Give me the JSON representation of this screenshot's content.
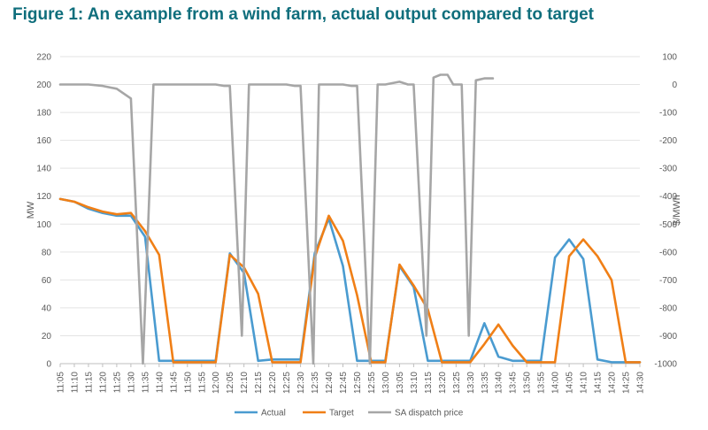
{
  "figure": {
    "title": "Figure 1: An example from a wind farm, actual output compared to target"
  },
  "chart_data": {
    "type": "line",
    "x_categories": [
      "11:05",
      "11:10",
      "11:15",
      "11:20",
      "11:25",
      "11:30",
      "11:35",
      "11:40",
      "11:45",
      "11:50",
      "11:55",
      "12:00",
      "12:05",
      "12:10",
      "12:15",
      "12:20",
      "12:25",
      "12:30",
      "12:35",
      "12:40",
      "12:45",
      "12:50",
      "12:55",
      "13:00",
      "13:05",
      "13:10",
      "13:15",
      "13:20",
      "13:25",
      "13:30",
      "13:35",
      "13:40",
      "13:45",
      "13:50",
      "13:55",
      "14:00",
      "14:05",
      "14:10",
      "14:15",
      "14:20",
      "14:25",
      "14:30"
    ],
    "left_axis": {
      "label": "MW",
      "min": 0,
      "max": 220,
      "step": 20,
      "ticks": [
        "0",
        "20",
        "40",
        "60",
        "80",
        "100",
        "120",
        "140",
        "160",
        "180",
        "200",
        "220"
      ]
    },
    "right_axis": {
      "label": "$/MWh",
      "min": -1000,
      "max": 100,
      "step": 100,
      "ticks": [
        "-1000",
        "-900",
        "-800",
        "-700",
        "-600",
        "-500",
        "-400",
        "-300",
        "-200",
        "-100",
        "0",
        "100"
      ]
    },
    "grid": true,
    "legend_position": "bottom",
    "series": [
      {
        "name": "Actual",
        "axis": "left",
        "color": "#4a9bd0",
        "values": [
          118,
          116,
          111,
          108,
          106,
          106,
          91,
          2,
          2,
          2,
          2,
          2,
          79,
          65,
          2,
          3,
          3,
          3,
          79,
          104,
          70,
          2,
          2,
          2,
          70,
          55,
          2,
          2,
          2,
          2,
          29,
          5,
          2,
          2,
          2,
          76,
          89,
          75,
          3,
          1,
          1,
          1
        ]
      },
      {
        "name": "Target",
        "axis": "left",
        "color": "#f07f16",
        "values": [
          118,
          116,
          112,
          109,
          107,
          108,
          95,
          78,
          1,
          1,
          1,
          1,
          78,
          69,
          50,
          1,
          1,
          1,
          76,
          106,
          88,
          49,
          1,
          1,
          71,
          56,
          39,
          1,
          1,
          1,
          14,
          28,
          13,
          1,
          1,
          1,
          77,
          89,
          77,
          60,
          1,
          1
        ]
      },
      {
        "name": "SA dispatch price",
        "axis": "right",
        "color": "#a6a6a6",
        "kind": "stepped",
        "points": [
          [
            0,
            0
          ],
          [
            1,
            0
          ],
          [
            2,
            0
          ],
          [
            3,
            -5
          ],
          [
            4,
            -15
          ],
          [
            5,
            -50
          ],
          [
            5.85,
            -1000
          ],
          [
            6.6,
            0
          ],
          [
            7,
            0
          ],
          [
            8,
            0
          ],
          [
            9,
            0
          ],
          [
            10,
            0
          ],
          [
            11,
            0
          ],
          [
            11.6,
            -5
          ],
          [
            12,
            -5
          ],
          [
            12.85,
            -900
          ],
          [
            13.35,
            0
          ],
          [
            14,
            0
          ],
          [
            15,
            0
          ],
          [
            16,
            0
          ],
          [
            16.6,
            -5
          ],
          [
            17,
            -5
          ],
          [
            17.9,
            -1000
          ],
          [
            18.3,
            0
          ],
          [
            19,
            0
          ],
          [
            20,
            0
          ],
          [
            20.6,
            -5
          ],
          [
            21,
            -5
          ],
          [
            21.9,
            -1000
          ],
          [
            22.45,
            0
          ],
          [
            23,
            0
          ],
          [
            24,
            10
          ],
          [
            24.6,
            0
          ],
          [
            25,
            0
          ],
          [
            25.9,
            -900
          ],
          [
            26.4,
            25
          ],
          [
            26.9,
            35
          ],
          [
            27.4,
            35
          ],
          [
            27.8,
            0
          ],
          [
            28.4,
            0
          ],
          [
            28.9,
            -900
          ],
          [
            29.4,
            15
          ],
          [
            30,
            22
          ],
          [
            30.6,
            22
          ]
        ]
      }
    ]
  }
}
